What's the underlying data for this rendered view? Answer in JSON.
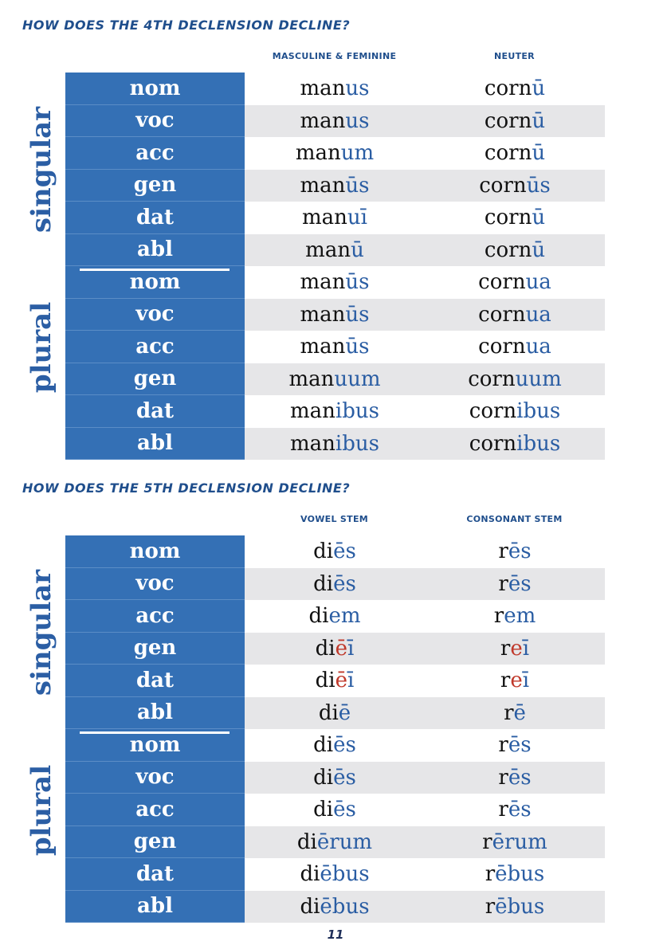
{
  "sections": [
    {
      "title": "HOW DOES THE 4TH DECLENSION DECLINE?",
      "col1": "MASCULINE & FEMININE",
      "col2": "NEUTER",
      "singular_label": "singular",
      "plural_label": "plural",
      "rows": [
        {
          "case": "nom",
          "c1": {
            "stem": "man",
            "ending": "us"
          },
          "c2": {
            "stem": "corn",
            "ending": "ū"
          }
        },
        {
          "case": "voc",
          "c1": {
            "stem": "man",
            "ending": "us"
          },
          "c2": {
            "stem": "corn",
            "ending": "ū"
          }
        },
        {
          "case": "acc",
          "c1": {
            "stem": "man",
            "ending": "um"
          },
          "c2": {
            "stem": "corn",
            "ending": "ū"
          }
        },
        {
          "case": "gen",
          "c1": {
            "stem": "man",
            "ending": "ūs"
          },
          "c2": {
            "stem": "corn",
            "ending": "ūs"
          }
        },
        {
          "case": "dat",
          "c1": {
            "stem": "man",
            "ending": "uī"
          },
          "c2": {
            "stem": "corn",
            "ending": "ū"
          }
        },
        {
          "case": "abl",
          "c1": {
            "stem": "man",
            "ending": "ū"
          },
          "c2": {
            "stem": "corn",
            "ending": "ū"
          }
        },
        {
          "case": "nom",
          "c1": {
            "stem": "man",
            "ending": "ūs"
          },
          "c2": {
            "stem": "corn",
            "ending": "ua"
          }
        },
        {
          "case": "voc",
          "c1": {
            "stem": "man",
            "ending": "ūs"
          },
          "c2": {
            "stem": "corn",
            "ending": "ua"
          }
        },
        {
          "case": "acc",
          "c1": {
            "stem": "man",
            "ending": "ūs"
          },
          "c2": {
            "stem": "corn",
            "ending": "ua"
          }
        },
        {
          "case": "gen",
          "c1": {
            "stem": "man",
            "ending": "uum"
          },
          "c2": {
            "stem": "corn",
            "ending": "uum"
          }
        },
        {
          "case": "dat",
          "c1": {
            "stem": "man",
            "ending": "ibus"
          },
          "c2": {
            "stem": "corn",
            "ending": "ibus"
          }
        },
        {
          "case": "abl",
          "c1": {
            "stem": "man",
            "ending": "ibus"
          },
          "c2": {
            "stem": "corn",
            "ending": "ibus"
          }
        }
      ]
    },
    {
      "title": "HOW DOES THE 5TH DECLENSION DECLINE?",
      "col1": "VOWEL STEM",
      "col2": "CONSONANT STEM",
      "singular_label": "singular",
      "plural_label": "plural",
      "rows": [
        {
          "case": "nom",
          "c1": {
            "stem": "di",
            "ending": "ēs"
          },
          "c2": {
            "stem": "r",
            "ending": "ēs"
          }
        },
        {
          "case": "voc",
          "c1": {
            "stem": "di",
            "ending": "ēs"
          },
          "c2": {
            "stem": "r",
            "ending": "ēs"
          }
        },
        {
          "case": "acc",
          "c1": {
            "stem": "di",
            "ending": "em"
          },
          "c2": {
            "stem": "r",
            "ending": "em"
          }
        },
        {
          "case": "gen",
          "c1": {
            "stem": "di",
            "ending_red": "ē",
            "ending": "ī"
          },
          "c2": {
            "stem": "r",
            "ending_red": "e",
            "ending": "ī"
          }
        },
        {
          "case": "dat",
          "c1": {
            "stem": "di",
            "ending_red": "ē",
            "ending": "ī"
          },
          "c2": {
            "stem": "r",
            "ending_red": "e",
            "ending": "ī"
          }
        },
        {
          "case": "abl",
          "c1": {
            "stem": "di",
            "ending": "ē"
          },
          "c2": {
            "stem": "r",
            "ending": "ē"
          }
        },
        {
          "case": "nom",
          "c1": {
            "stem": "di",
            "ending": "ēs"
          },
          "c2": {
            "stem": "r",
            "ending": "ēs"
          }
        },
        {
          "case": "voc",
          "c1": {
            "stem": "di",
            "ending": "ēs"
          },
          "c2": {
            "stem": "r",
            "ending": "ēs"
          }
        },
        {
          "case": "acc",
          "c1": {
            "stem": "di",
            "ending": "ēs"
          },
          "c2": {
            "stem": "r",
            "ending": "ēs"
          }
        },
        {
          "case": "gen",
          "c1": {
            "stem": "di",
            "ending": "ērum"
          },
          "c2": {
            "stem": "r",
            "ending": "ērum"
          }
        },
        {
          "case": "dat",
          "c1": {
            "stem": "di",
            "ending": "ēbus"
          },
          "c2": {
            "stem": "r",
            "ending": "ēbus"
          }
        },
        {
          "case": "abl",
          "c1": {
            "stem": "di",
            "ending": "ēbus"
          },
          "c2": {
            "stem": "r",
            "ending": "ēbus"
          }
        }
      ]
    }
  ],
  "page_number": "11",
  "colors": {
    "blue": "#3470b5",
    "ending": "#2a5da3",
    "red_ending": "#c0392b",
    "heading": "#1f4e8c",
    "row_shade": "#e6e6e8"
  }
}
